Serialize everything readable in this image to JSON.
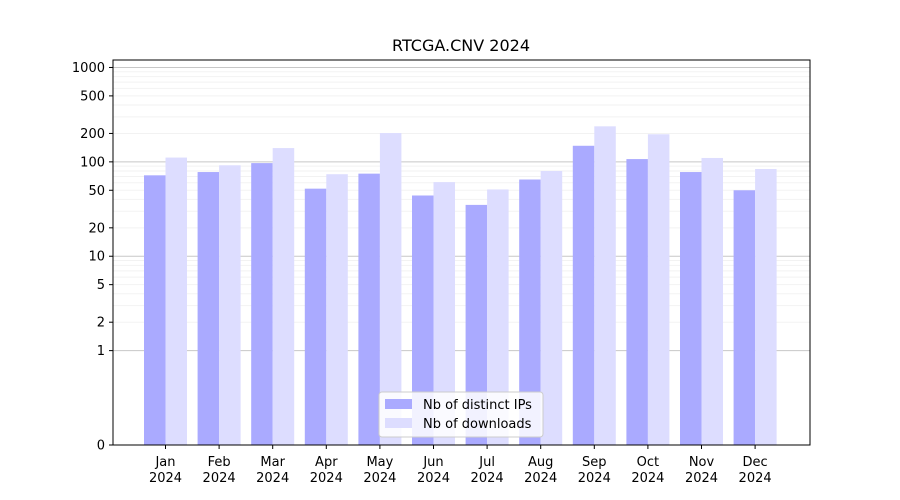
{
  "chart_data": {
    "type": "bar",
    "title": "RTCGA.CNV 2024",
    "xlabel": "",
    "ylabel": "",
    "y_scale": "symlog",
    "ylim": [
      0,
      1200
    ],
    "grid": "horizontal",
    "legend_placement": "bottom-center",
    "categories": [
      "Jan\n2024",
      "Feb\n2024",
      "Mar\n2024",
      "Apr\n2024",
      "May\n2024",
      "Jun\n2024",
      "Jul\n2024",
      "Aug\n2024",
      "Sep\n2024",
      "Oct\n2024",
      "Nov\n2024",
      "Dec\n2024"
    ],
    "y_ticks": [
      0,
      1,
      2,
      5,
      10,
      20,
      50,
      100,
      200,
      500,
      1000
    ],
    "series": [
      {
        "name": "Nb of distinct IPs",
        "color": "#aaaaff",
        "values": [
          72,
          78,
          97,
          52,
          75,
          44,
          35,
          65,
          148,
          107,
          78,
          50
        ]
      },
      {
        "name": "Nb of downloads",
        "color": "#ddddff",
        "values": [
          111,
          92,
          140,
          74,
          202,
          61,
          51,
          80,
          238,
          196,
          110,
          84
        ]
      }
    ]
  }
}
